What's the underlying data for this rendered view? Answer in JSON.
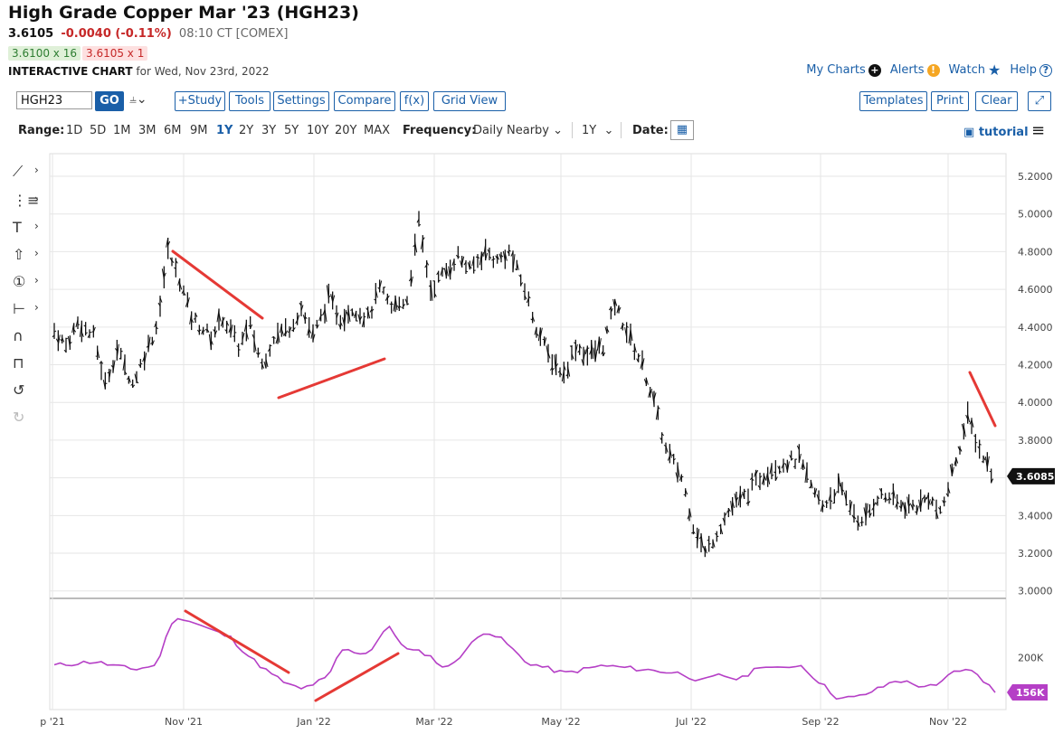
{
  "header": {
    "title": "High Grade Copper Mar '23 (HGH23)",
    "last": "3.6105",
    "change": "-0.0040 (-0.11%)",
    "time": "08:10 CT [COMEX]",
    "bid": "3.6100 x 16",
    "ask": "3.6105 x 1",
    "chart_label": "INTERACTIVE CHART",
    "chart_date": "for Wed, Nov 23rd, 2022"
  },
  "top_links": {
    "my_charts": "My Charts",
    "alerts": "Alerts",
    "watch": "Watch",
    "help": "Help"
  },
  "toolbar": {
    "symbol": "HGH23",
    "go": "GO",
    "study": "+Study",
    "tools": "Tools",
    "settings": "Settings",
    "compare": "Compare",
    "fx": "f(x)",
    "grid_view": "Grid View",
    "templates": "Templates",
    "print": "Print",
    "clear": "Clear"
  },
  "rangebar": {
    "range_label": "Range:",
    "ranges": [
      "1D",
      "5D",
      "1M",
      "3M",
      "6M",
      "9M",
      "1Y",
      "2Y",
      "3Y",
      "5Y",
      "10Y",
      "20Y",
      "MAX"
    ],
    "active_range": "1Y",
    "frequency_label": "Frequency:",
    "frequency": "Daily Nearby",
    "period": "1Y",
    "date_label": "Date:",
    "tutorial": "tutorial"
  },
  "side_tools": [
    "line-tool-icon",
    "fib-tool-icon",
    "text-tool-icon",
    "arrow-tool-icon",
    "counter-tool-icon",
    "measure-tool-icon",
    "magnet-icon",
    "lock-icon",
    "undo-icon",
    "redo-icon"
  ],
  "colors": {
    "accent": "#1a5fa8",
    "negative": "#c62828",
    "trendline": "#e53935",
    "volume": "#b53fc6"
  },
  "chart_data": {
    "type": "ohlc",
    "price_axis": {
      "ticks": [
        "5.2000",
        "5.0000",
        "4.8000",
        "4.6000",
        "4.4000",
        "4.2000",
        "4.0000",
        "3.8000",
        "3.6000",
        "3.4000",
        "3.2000",
        "3.0000"
      ],
      "ylim": [
        2.97,
        5.32
      ]
    },
    "x_ticks": [
      "p '21",
      "Nov '21",
      "Jan '22",
      "Mar '22",
      "May '22",
      "Jul '22",
      "Sep '22",
      "Nov '22"
    ],
    "price_points": [
      {
        "x": 0.0,
        "y": 4.38
      },
      {
        "x": 0.3,
        "y": 4.3
      },
      {
        "x": 0.6,
        "y": 4.42
      },
      {
        "x": 1.0,
        "y": 4.35
      },
      {
        "x": 1.3,
        "y": 4.1
      },
      {
        "x": 1.6,
        "y": 4.28
      },
      {
        "x": 2.0,
        "y": 4.1
      },
      {
        "x": 2.3,
        "y": 4.25
      },
      {
        "x": 2.6,
        "y": 4.4
      },
      {
        "x": 2.9,
        "y": 4.8
      },
      {
        "x": 3.2,
        "y": 4.65
      },
      {
        "x": 3.5,
        "y": 4.45
      },
      {
        "x": 4.0,
        "y": 4.35
      },
      {
        "x": 4.3,
        "y": 4.45
      },
      {
        "x": 4.7,
        "y": 4.3
      },
      {
        "x": 5.0,
        "y": 4.4
      },
      {
        "x": 5.3,
        "y": 4.2
      },
      {
        "x": 5.6,
        "y": 4.35
      },
      {
        "x": 6.0,
        "y": 4.4
      },
      {
        "x": 6.3,
        "y": 4.5
      },
      {
        "x": 6.6,
        "y": 4.35
      },
      {
        "x": 7.0,
        "y": 4.55
      },
      {
        "x": 7.3,
        "y": 4.45
      },
      {
        "x": 7.6,
        "y": 4.5
      },
      {
        "x": 8.0,
        "y": 4.45
      },
      {
        "x": 8.3,
        "y": 4.6
      },
      {
        "x": 8.6,
        "y": 4.5
      },
      {
        "x": 9.0,
        "y": 4.55
      },
      {
        "x": 9.3,
        "y": 4.95
      },
      {
        "x": 9.6,
        "y": 4.6
      },
      {
        "x": 10.0,
        "y": 4.7
      },
      {
        "x": 10.3,
        "y": 4.78
      },
      {
        "x": 10.6,
        "y": 4.7
      },
      {
        "x": 11.0,
        "y": 4.8
      },
      {
        "x": 11.3,
        "y": 4.75
      },
      {
        "x": 11.6,
        "y": 4.8
      },
      {
        "x": 12.0,
        "y": 4.6
      },
      {
        "x": 12.3,
        "y": 4.4
      },
      {
        "x": 12.6,
        "y": 4.25
      },
      {
        "x": 13.0,
        "y": 4.15
      },
      {
        "x": 13.3,
        "y": 4.3
      },
      {
        "x": 13.6,
        "y": 4.25
      },
      {
        "x": 14.0,
        "y": 4.3
      },
      {
        "x": 14.3,
        "y": 4.52
      },
      {
        "x": 14.6,
        "y": 4.38
      },
      {
        "x": 15.0,
        "y": 4.2
      },
      {
        "x": 15.3,
        "y": 4.0
      },
      {
        "x": 15.6,
        "y": 3.75
      },
      {
        "x": 16.0,
        "y": 3.6
      },
      {
        "x": 16.3,
        "y": 3.35
      },
      {
        "x": 16.6,
        "y": 3.2
      },
      {
        "x": 17.0,
        "y": 3.35
      },
      {
        "x": 17.3,
        "y": 3.45
      },
      {
        "x": 17.6,
        "y": 3.5
      },
      {
        "x": 18.0,
        "y": 3.6
      },
      {
        "x": 18.3,
        "y": 3.65
      },
      {
        "x": 18.6,
        "y": 3.68
      },
      {
        "x": 19.0,
        "y": 3.7
      },
      {
        "x": 19.3,
        "y": 3.55
      },
      {
        "x": 19.6,
        "y": 3.45
      },
      {
        "x": 20.0,
        "y": 3.55
      },
      {
        "x": 20.3,
        "y": 3.45
      },
      {
        "x": 20.6,
        "y": 3.35
      },
      {
        "x": 21.0,
        "y": 3.5
      },
      {
        "x": 21.3,
        "y": 3.5
      },
      {
        "x": 21.6,
        "y": 3.45
      },
      {
        "x": 22.0,
        "y": 3.45
      },
      {
        "x": 22.3,
        "y": 3.5
      },
      {
        "x": 22.6,
        "y": 3.4
      },
      {
        "x": 23.0,
        "y": 3.7
      },
      {
        "x": 23.3,
        "y": 3.92
      },
      {
        "x": 23.6,
        "y": 3.75
      },
      {
        "x": 24.0,
        "y": 3.6
      }
    ],
    "last_price_label": "3.6085",
    "volume_axis": {
      "ticks": [
        "200K"
      ],
      "last_label": "156K"
    },
    "volume_points": [
      {
        "x": 0.0,
        "y": 190
      },
      {
        "x": 1.0,
        "y": 195
      },
      {
        "x": 2.0,
        "y": 185
      },
      {
        "x": 2.6,
        "y": 190
      },
      {
        "x": 3.0,
        "y": 245
      },
      {
        "x": 3.3,
        "y": 250
      },
      {
        "x": 4.0,
        "y": 235
      },
      {
        "x": 4.5,
        "y": 225
      },
      {
        "x": 5.0,
        "y": 200
      },
      {
        "x": 5.5,
        "y": 180
      },
      {
        "x": 6.0,
        "y": 165
      },
      {
        "x": 6.3,
        "y": 160
      },
      {
        "x": 7.0,
        "y": 175
      },
      {
        "x": 7.3,
        "y": 210
      },
      {
        "x": 8.0,
        "y": 205
      },
      {
        "x": 8.5,
        "y": 240
      },
      {
        "x": 9.0,
        "y": 210
      },
      {
        "x": 9.5,
        "y": 205
      },
      {
        "x": 10.0,
        "y": 185
      },
      {
        "x": 10.5,
        "y": 210
      },
      {
        "x": 11.0,
        "y": 235
      },
      {
        "x": 11.5,
        "y": 220
      },
      {
        "x": 12.0,
        "y": 195
      },
      {
        "x": 13.0,
        "y": 180
      },
      {
        "x": 14.0,
        "y": 190
      },
      {
        "x": 15.0,
        "y": 185
      },
      {
        "x": 16.0,
        "y": 180
      },
      {
        "x": 16.5,
        "y": 170
      },
      {
        "x": 17.0,
        "y": 178
      },
      {
        "x": 17.5,
        "y": 172
      },
      {
        "x": 18.0,
        "y": 190
      },
      {
        "x": 18.5,
        "y": 185
      },
      {
        "x": 19.0,
        "y": 192
      },
      {
        "x": 19.5,
        "y": 170
      },
      {
        "x": 20.0,
        "y": 148
      },
      {
        "x": 20.5,
        "y": 150
      },
      {
        "x": 21.0,
        "y": 160
      },
      {
        "x": 21.5,
        "y": 172
      },
      {
        "x": 22.0,
        "y": 165
      },
      {
        "x": 22.5,
        "y": 163
      },
      {
        "x": 23.0,
        "y": 185
      },
      {
        "x": 23.5,
        "y": 182
      },
      {
        "x": 24.0,
        "y": 156
      }
    ],
    "annotations": "red trendlines"
  }
}
